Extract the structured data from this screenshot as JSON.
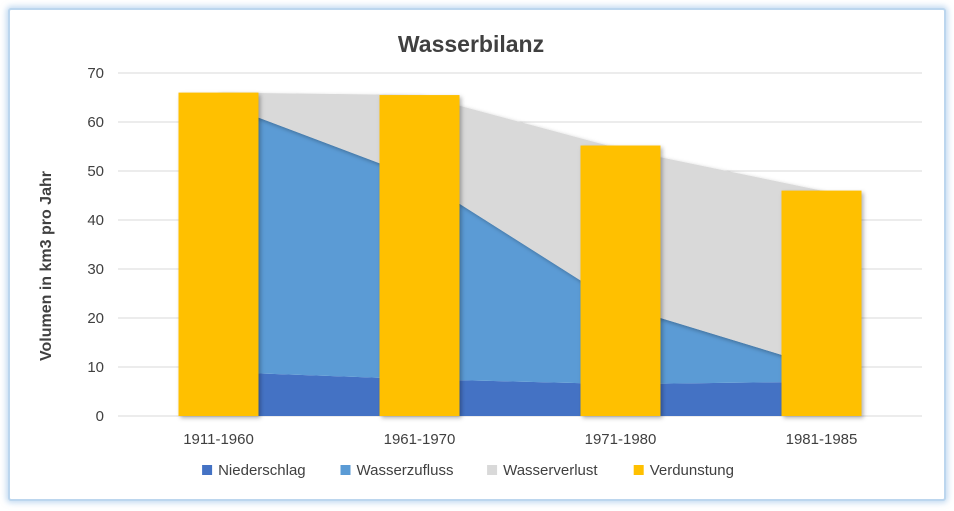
{
  "chart_data": {
    "type": "area+bar",
    "title": "Wasserbilanz",
    "xlabel": "",
    "ylabel": "Volumen in km3 pro Jahr",
    "ylim": [
      0,
      70
    ],
    "yticks": [
      0,
      10,
      20,
      30,
      40,
      50,
      60,
      70
    ],
    "grid": true,
    "categories": [
      "1911-1960",
      "1961-1970",
      "1971-1980",
      "1981-1985"
    ],
    "series": [
      {
        "name": "Niederschlag",
        "kind": "stacked-area",
        "color": "#4472c4",
        "values": [
          9,
          7.5,
          6.5,
          7
        ]
      },
      {
        "name": "Wasserzufluss",
        "kind": "stacked-area",
        "color": "#5b9bd5",
        "values": [
          55,
          41,
          16,
          3
        ]
      },
      {
        "name": "Wasserverlust",
        "kind": "stacked-area",
        "color": "#d9d9d9",
        "values": [
          2,
          17,
          32,
          36
        ]
      },
      {
        "name": "Verdunstung",
        "kind": "bar",
        "color": "#ffc000",
        "values": [
          66,
          65.5,
          55.2,
          46
        ]
      }
    ],
    "legend_position": "bottom"
  }
}
